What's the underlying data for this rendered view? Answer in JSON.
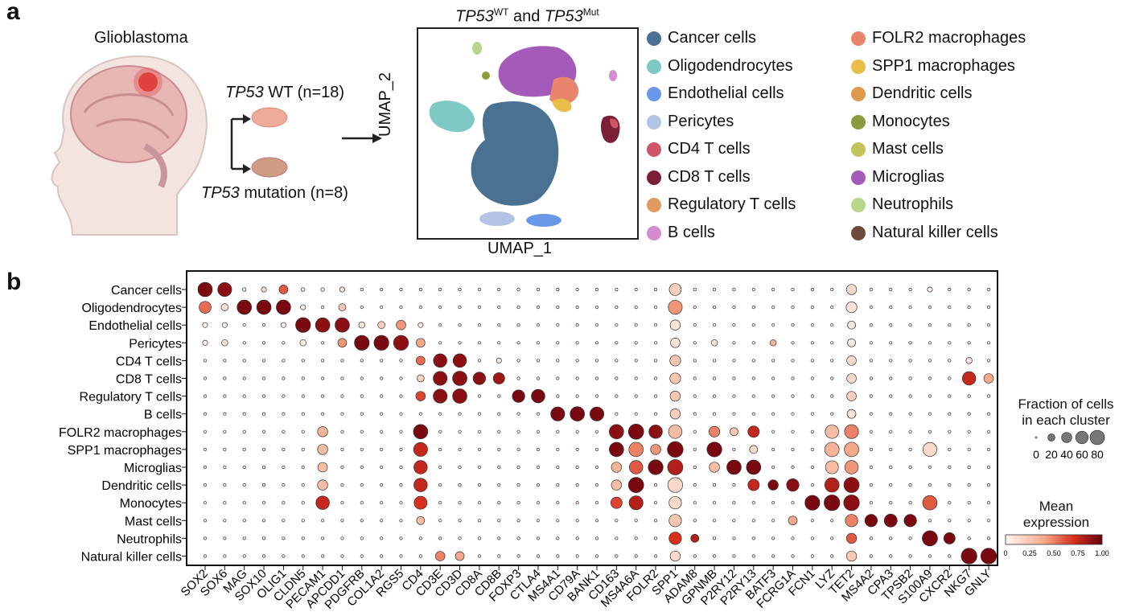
{
  "panel_a": {
    "label": "a",
    "tumor_title": "Glioblastoma",
    "wt_gene": "TP53",
    "wt_text": " WT (n=18)",
    "mut_gene": "TP53",
    "mut_text": " mutation (n=8)",
    "umap_title_gene1": "TP53",
    "umap_title_sup1": "WT",
    "umap_title_and": " and ",
    "umap_title_gene2": "TP53",
    "umap_title_sup2": "Mut",
    "umap_x": "UMAP_1",
    "umap_y": "UMAP_2",
    "legend": [
      {
        "name": "Cancer cells",
        "color": "#4a7191"
      },
      {
        "name": "Oligodendrocytes",
        "color": "#7ec9c4"
      },
      {
        "name": "Endothelial cells",
        "color": "#6a98e8"
      },
      {
        "name": "Pericytes",
        "color": "#b3c3e3"
      },
      {
        "name": "CD4 T cells",
        "color": "#d05468"
      },
      {
        "name": "CD8 T cells",
        "color": "#7a1f36"
      },
      {
        "name": "Regulatory T cells",
        "color": "#e09a62"
      },
      {
        "name": "B cells",
        "color": "#d38cce"
      },
      {
        "name": "FOLR2 macrophages",
        "color": "#e8846c"
      },
      {
        "name": "SPP1 macrophages",
        "color": "#eabd48"
      },
      {
        "name": "Dendritic cells",
        "color": "#dd9a4d"
      },
      {
        "name": "Monocytes",
        "color": "#8e9a3d"
      },
      {
        "name": "Mast cells",
        "color": "#c2c35c"
      },
      {
        "name": "Microglias",
        "color": "#a35ab8"
      },
      {
        "name": "Neutrophils",
        "color": "#b7d68a"
      },
      {
        "name": "Natural killer cells",
        "color": "#6e4a3c"
      }
    ]
  },
  "panel_b": {
    "label": "b",
    "size_legend_title1": "Fraction of cells",
    "size_legend_title2": "in each cluster",
    "size_legend_ticks": [
      "0",
      "20",
      "40",
      "60",
      "80"
    ],
    "color_legend_title1": "Mean",
    "color_legend_title2": "expression",
    "color_legend_ticks": [
      "0",
      "0.25",
      "0.50",
      "0.75",
      "1.00"
    ]
  },
  "chart_data": {
    "type": "dotplot",
    "title": "",
    "rows": [
      "Cancer cells",
      "Oligodendrocytes",
      "Endothelial cells",
      "Pericytes",
      "CD4 T cells",
      "CD8 T cells",
      "Regulatory T cells",
      "B cells",
      "FOLR2 macrophages",
      "SPP1 macrophages",
      "Microglias",
      "Dendritic cells",
      "Monocytes",
      "Mast cells",
      "Neutrophils",
      "Natural killer cells"
    ],
    "genes": [
      "SOX2",
      "SOX6",
      "MAG",
      "SOX10",
      "OLIG1",
      "CLDN5",
      "PECAM1",
      "APCDD1",
      "PDGFRB",
      "COL1A2",
      "RGS5",
      "CD4",
      "CD3E",
      "CD3D",
      "CD8A",
      "CD8B",
      "FOXP3",
      "CTLA4",
      "MS4A1",
      "CD79A",
      "BANK1",
      "CD163",
      "MS4A6A",
      "FOLR2",
      "SPP1",
      "ADAM8",
      "GPNMB",
      "P2RY12",
      "P2RY13",
      "BATF3",
      "FCRG1A",
      "FCN1",
      "LYZ",
      "TET2",
      "MS4A2",
      "CPA3",
      "TPSB2",
      "S100A9",
      "CXCR2",
      "NKG7",
      "GNLY"
    ],
    "fraction_scale": [
      0,
      100
    ],
    "expression_scale": [
      0,
      1
    ],
    "points": [
      [
        "Cancer cells",
        "SOX2",
        80,
        0.95
      ],
      [
        "Cancer cells",
        "SOX6",
        75,
        0.9
      ],
      [
        "Cancer cells",
        "MAG",
        5,
        0.1
      ],
      [
        "Cancer cells",
        "SOX10",
        10,
        0.15
      ],
      [
        "Cancer cells",
        "OLIG1",
        30,
        0.6
      ],
      [
        "Cancer cells",
        "CLDN5",
        5,
        0.05
      ],
      [
        "Cancer cells",
        "PECAM1",
        5,
        0.05
      ],
      [
        "Cancer cells",
        "APCDD1",
        10,
        0.1
      ],
      [
        "Cancer cells",
        "SPP1",
        55,
        0.2
      ],
      [
        "Cancer cells",
        "TET2",
        40,
        0.15
      ],
      [
        "Cancer cells",
        "S100A9",
        10,
        0.05
      ],
      [
        "Oligodendrocytes",
        "SOX2",
        55,
        0.55
      ],
      [
        "Oligodendrocytes",
        "SOX6",
        20,
        0.1
      ],
      [
        "Oligodendrocytes",
        "MAG",
        80,
        0.95
      ],
      [
        "Oligodendrocytes",
        "SOX10",
        80,
        0.95
      ],
      [
        "Oligodendrocytes",
        "OLIG1",
        80,
        0.95
      ],
      [
        "Oligodendrocytes",
        "CLDN5",
        10,
        0.05
      ],
      [
        "Oligodendrocytes",
        "APCDD1",
        20,
        0.25
      ],
      [
        "Oligodendrocytes",
        "SPP1",
        75,
        0.45
      ],
      [
        "Oligodendrocytes",
        "TET2",
        45,
        0.1
      ],
      [
        "Endothelial cells",
        "SOX2",
        10,
        0.05
      ],
      [
        "Endothelial cells",
        "SOX6",
        10,
        0.05
      ],
      [
        "Endothelial cells",
        "OLIG1",
        10,
        0.05
      ],
      [
        "Endothelial cells",
        "CLDN5",
        85,
        0.95
      ],
      [
        "Endothelial cells",
        "PECAM1",
        80,
        0.9
      ],
      [
        "Endothelial cells",
        "APCDD1",
        80,
        0.9
      ],
      [
        "Endothelial cells",
        "PDGFRB",
        15,
        0.1
      ],
      [
        "Endothelial cells",
        "COL1A2",
        20,
        0.2
      ],
      [
        "Endothelial cells",
        "RGS5",
        35,
        0.45
      ],
      [
        "Endothelial cells",
        "CD4",
        10,
        0.05
      ],
      [
        "Endothelial cells",
        "SPP1",
        40,
        0.1
      ],
      [
        "Endothelial cells",
        "TET2",
        25,
        0.05
      ],
      [
        "Pericytes",
        "SOX2",
        10,
        0.05
      ],
      [
        "Pericytes",
        "SOX6",
        15,
        0.1
      ],
      [
        "Pericytes",
        "CLDN5",
        15,
        0.05
      ],
      [
        "Pericytes",
        "APCDD1",
        30,
        0.45
      ],
      [
        "Pericytes",
        "PDGFRB",
        85,
        0.95
      ],
      [
        "Pericytes",
        "COL1A2",
        85,
        0.95
      ],
      [
        "Pericytes",
        "RGS5",
        85,
        0.9
      ],
      [
        "Pericytes",
        "CD4",
        30,
        0.4
      ],
      [
        "Pericytes",
        "SPP1",
        35,
        0.1
      ],
      [
        "Pericytes",
        "GPNMB",
        15,
        0.1
      ],
      [
        "Pericytes",
        "BATF3",
        15,
        0.35
      ],
      [
        "Pericytes",
        "TET2",
        25,
        0.05
      ],
      [
        "CD4 T cells",
        "CD4",
        30,
        0.55
      ],
      [
        "CD4 T cells",
        "CD3E",
        70,
        0.9
      ],
      [
        "CD4 T cells",
        "CD3D",
        70,
        0.9
      ],
      [
        "CD4 T cells",
        "CD8B",
        10,
        0.05
      ],
      [
        "CD4 T cells",
        "SPP1",
        45,
        0.25
      ],
      [
        "CD4 T cells",
        "TET2",
        35,
        0.15
      ],
      [
        "CD4 T cells",
        "NKG7",
        15,
        0.1
      ],
      [
        "CD8 T cells",
        "CD4",
        20,
        0.2
      ],
      [
        "CD8 T cells",
        "CD3E",
        75,
        0.9
      ],
      [
        "CD8 T cells",
        "CD3D",
        80,
        0.9
      ],
      [
        "CD8 T cells",
        "CD8A",
        60,
        0.9
      ],
      [
        "CD8 T cells",
        "CD8B",
        50,
        0.85
      ],
      [
        "CD8 T cells",
        "SPP1",
        45,
        0.25
      ],
      [
        "CD8 T cells",
        "TET2",
        35,
        0.15
      ],
      [
        "CD8 T cells",
        "NKG7",
        70,
        0.75
      ],
      [
        "CD8 T cells",
        "GNLY",
        35,
        0.4
      ],
      [
        "Regulatory T cells",
        "CD4",
        35,
        0.65
      ],
      [
        "Regulatory T cells",
        "CD3E",
        75,
        0.9
      ],
      [
        "Regulatory T cells",
        "CD3D",
        80,
        0.9
      ],
      [
        "Regulatory T cells",
        "FOXP3",
        60,
        0.95
      ],
      [
        "Regulatory T cells",
        "CTLA4",
        70,
        0.95
      ],
      [
        "Regulatory T cells",
        "SPP1",
        40,
        0.25
      ],
      [
        "Regulatory T cells",
        "TET2",
        35,
        0.2
      ],
      [
        "B cells",
        "MS4A1",
        75,
        0.95
      ],
      [
        "B cells",
        "CD79A",
        80,
        0.95
      ],
      [
        "B cells",
        "BANK1",
        75,
        0.95
      ],
      [
        "B cells",
        "SPP1",
        40,
        0.2
      ],
      [
        "B cells",
        "TET2",
        30,
        0.1
      ],
      [
        "FOLR2 macrophages",
        "PECAM1",
        40,
        0.35
      ],
      [
        "FOLR2 macrophages",
        "CD4",
        80,
        0.95
      ],
      [
        "FOLR2 macrophages",
        "CD163",
        80,
        0.9
      ],
      [
        "FOLR2 macrophages",
        "MS4A6A",
        90,
        0.95
      ],
      [
        "FOLR2 macrophages",
        "FOLR2",
        70,
        0.9
      ],
      [
        "FOLR2 macrophages",
        "SPP1",
        70,
        0.3
      ],
      [
        "FOLR2 macrophages",
        "GPNMB",
        45,
        0.5
      ],
      [
        "FOLR2 macrophages",
        "P2RY12",
        25,
        0.25
      ],
      [
        "FOLR2 macrophages",
        "P2RY13",
        50,
        0.75
      ],
      [
        "FOLR2 macrophages",
        "LYZ",
        70,
        0.3
      ],
      [
        "FOLR2 macrophages",
        "TET2",
        75,
        0.5
      ],
      [
        "SPP1 macrophages",
        "PECAM1",
        40,
        0.3
      ],
      [
        "SPP1 macrophages",
        "CD4",
        75,
        0.75
      ],
      [
        "SPP1 macrophages",
        "CD163",
        80,
        0.95
      ],
      [
        "SPP1 macrophages",
        "MS4A6A",
        80,
        0.5
      ],
      [
        "SPP1 macrophages",
        "FOLR2",
        40,
        0.45
      ],
      [
        "SPP1 macrophages",
        "SPP1",
        95,
        0.95
      ],
      [
        "SPP1 macrophages",
        "GPNMB",
        85,
        0.95
      ],
      [
        "SPP1 macrophages",
        "P2RY13",
        25,
        0.15
      ],
      [
        "SPP1 macrophages",
        "LYZ",
        80,
        0.35
      ],
      [
        "SPP1 macrophages",
        "TET2",
        80,
        0.4
      ],
      [
        "SPP1 macrophages",
        "S100A9",
        75,
        0.15
      ],
      [
        "Microglias",
        "PECAM1",
        35,
        0.3
      ],
      [
        "Microglias",
        "CD4",
        70,
        0.75
      ],
      [
        "Microglias",
        "CD163",
        40,
        0.35
      ],
      [
        "Microglias",
        "MS4A6A",
        70,
        0.6
      ],
      [
        "Microglias",
        "FOLR2",
        85,
        0.95
      ],
      [
        "Microglias",
        "SPP1",
        90,
        0.8
      ],
      [
        "Microglias",
        "GPNMB",
        40,
        0.3
      ],
      [
        "Microglias",
        "P2RY12",
        80,
        0.95
      ],
      [
        "Microglias",
        "P2RY13",
        80,
        0.95
      ],
      [
        "Microglias",
        "LYZ",
        65,
        0.3
      ],
      [
        "Microglias",
        "TET2",
        70,
        0.45
      ],
      [
        "Dendritic cells",
        "PECAM1",
        40,
        0.3
      ],
      [
        "Dendritic cells",
        "CD4",
        70,
        0.75
      ],
      [
        "Dendritic cells",
        "CD163",
        40,
        0.3
      ],
      [
        "Dendritic cells",
        "MS4A6A",
        90,
        0.95
      ],
      [
        "Dendritic cells",
        "SPP1",
        85,
        0.15
      ],
      [
        "Dendritic cells",
        "P2RY13",
        50,
        0.75
      ],
      [
        "Dendritic cells",
        "BATF3",
        40,
        0.95
      ],
      [
        "Dendritic cells",
        "FCRG1A",
        60,
        0.9
      ],
      [
        "Dendritic cells",
        "LYZ",
        80,
        0.8
      ],
      [
        "Dendritic cells",
        "TET2",
        90,
        0.9
      ],
      [
        "Monocytes",
        "PECAM1",
        70,
        0.75
      ],
      [
        "Monocytes",
        "CD4",
        65,
        0.7
      ],
      [
        "Monocytes",
        "CD163",
        50,
        0.65
      ],
      [
        "Monocytes",
        "MS4A6A",
        75,
        0.8
      ],
      [
        "Monocytes",
        "SPP1",
        60,
        0.15
      ],
      [
        "Monocytes",
        "FCN1",
        85,
        0.95
      ],
      [
        "Monocytes",
        "LYZ",
        95,
        0.95
      ],
      [
        "Monocytes",
        "TET2",
        95,
        0.9
      ],
      [
        "Monocytes",
        "S100A9",
        80,
        0.6
      ],
      [
        "Mast cells",
        "CD4",
        25,
        0.3
      ],
      [
        "Mast cells",
        "SPP1",
        60,
        0.25
      ],
      [
        "Mast cells",
        "FCRG1A",
        30,
        0.4
      ],
      [
        "Mast cells",
        "TET2",
        60,
        0.5
      ],
      [
        "Mast cells",
        "MS4A2",
        60,
        0.95
      ],
      [
        "Mast cells",
        "CPA3",
        65,
        0.95
      ],
      [
        "Mast cells",
        "TPSB2",
        60,
        0.95
      ],
      [
        "Neutrophils",
        "SPP1",
        60,
        0.7
      ],
      [
        "Neutrophils",
        "ADAM8",
        25,
        0.8
      ],
      [
        "Neutrophils",
        "TET2",
        40,
        0.6
      ],
      [
        "Neutrophils",
        "S100A9",
        90,
        0.95
      ],
      [
        "Neutrophils",
        "CXCR2",
        50,
        0.95
      ],
      [
        "Natural killer cells",
        "CD3E",
        35,
        0.5
      ],
      [
        "Natural killer cells",
        "CD3D",
        30,
        0.4
      ],
      [
        "Natural killer cells",
        "SPP1",
        40,
        0.15
      ],
      [
        "Natural killer cells",
        "TET2",
        40,
        0.25
      ],
      [
        "Natural killer cells",
        "NKG7",
        95,
        0.95
      ],
      [
        "Natural killer cells",
        "GNLY",
        95,
        0.95
      ]
    ]
  }
}
